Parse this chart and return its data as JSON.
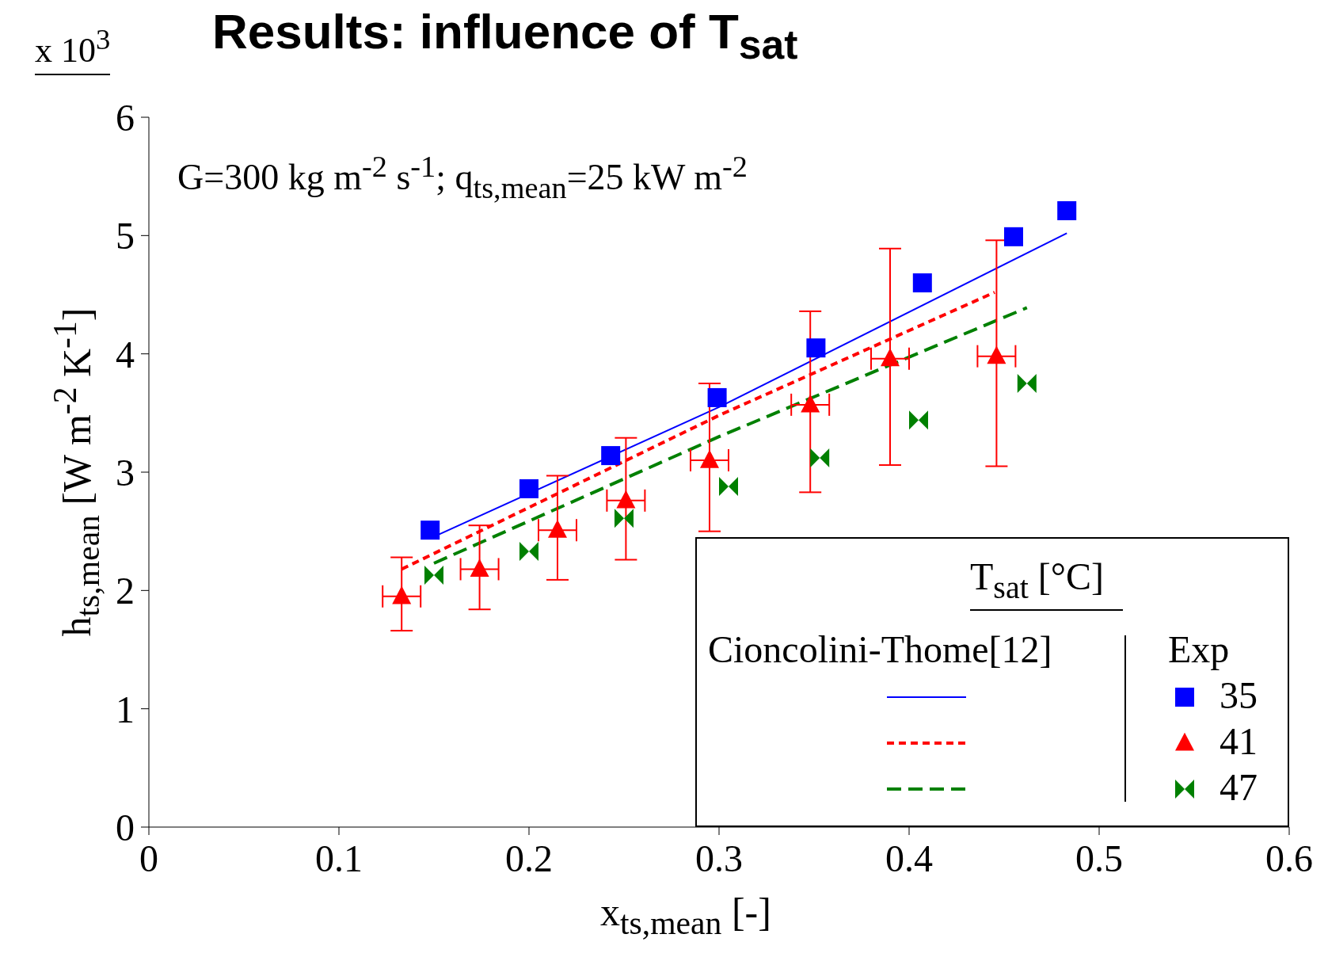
{
  "chart_data": {
    "type": "scatter",
    "title": "Results: influence of T$_{sat}$",
    "xlabel": "x$_{ts,mean}$ [-]",
    "ylabel": "h$_{ts,mean}$ [W m$^{-2}$ K$^{-1}$]",
    "legend_title": "T$_{sat}$ [°C]",
    "annotations": [
      "G=300 kg m$^{-2}$ s$^{-1}$; q$_{ts,mean}$=25 kW m$^{-2}$",
      "x 10$^{3}$",
      "Cioncolini-Thome[12]",
      "Exp"
    ],
    "xlim": [
      0,
      0.6
    ],
    "xticks": [
      0,
      0.1,
      0.2,
      0.3,
      0.4,
      0.5,
      0.6
    ],
    "ylim": [
      0,
      6
    ],
    "yticks": [
      0,
      1,
      2,
      3,
      4,
      5,
      6
    ],
    "grid": false,
    "legend": "bottom right",
    "series": [
      {
        "type": "line",
        "color": "#0000ff",
        "line_style": "solid",
        "x": [
          0.148,
          0.3,
          0.483
        ],
        "values": [
          2.44,
          3.55,
          5.02
        ]
      },
      {
        "type": "line",
        "color": "#ff0000",
        "line_style": "dotted",
        "x": [
          0.133,
          0.3,
          0.445
        ],
        "values": [
          2.18,
          3.48,
          4.52
        ]
      },
      {
        "type": "line",
        "color": "#008000",
        "line_style": "dashed",
        "x": [
          0.15,
          0.3,
          0.462
        ],
        "values": [
          2.23,
          3.3,
          4.39
        ]
      },
      {
        "name": "35",
        "color": "#0000ff",
        "marker": "square",
        "x": [
          0.148,
          0.2,
          0.243,
          0.299,
          0.351,
          0.407,
          0.455,
          0.483
        ],
        "values": [
          2.51,
          2.86,
          3.14,
          3.63,
          4.05,
          4.6,
          4.99,
          5.21
        ]
      },
      {
        "name": "41",
        "color": "#ff0000",
        "marker": "triangle",
        "x": [
          0.133,
          0.174,
          0.215,
          0.251,
          0.295,
          0.348,
          0.39,
          0.446
        ],
        "values": [
          1.95,
          2.18,
          2.51,
          2.76,
          3.1,
          3.57,
          3.96,
          3.98
        ],
        "errors": [
          [
            1.66,
            2.28
          ],
          [
            1.84,
            2.55
          ],
          [
            2.09,
            2.97
          ],
          [
            2.26,
            3.29
          ],
          [
            2.5,
            3.75
          ],
          [
            2.83,
            4.36
          ],
          [
            3.06,
            4.89
          ],
          [
            3.05,
            4.96
          ]
        ],
        "xerrors": [
          0.01,
          0.01,
          0.01,
          0.01,
          0.01,
          0.01,
          0.01,
          0.01
        ]
      },
      {
        "name": "47",
        "color": "#008000",
        "x": [
          0.15,
          0.2,
          0.25,
          0.305,
          0.353,
          0.405,
          0.462
        ],
        "values": [
          2.13,
          2.33,
          2.61,
          2.88,
          3.12,
          3.44,
          3.75
        ]
      }
    ]
  }
}
